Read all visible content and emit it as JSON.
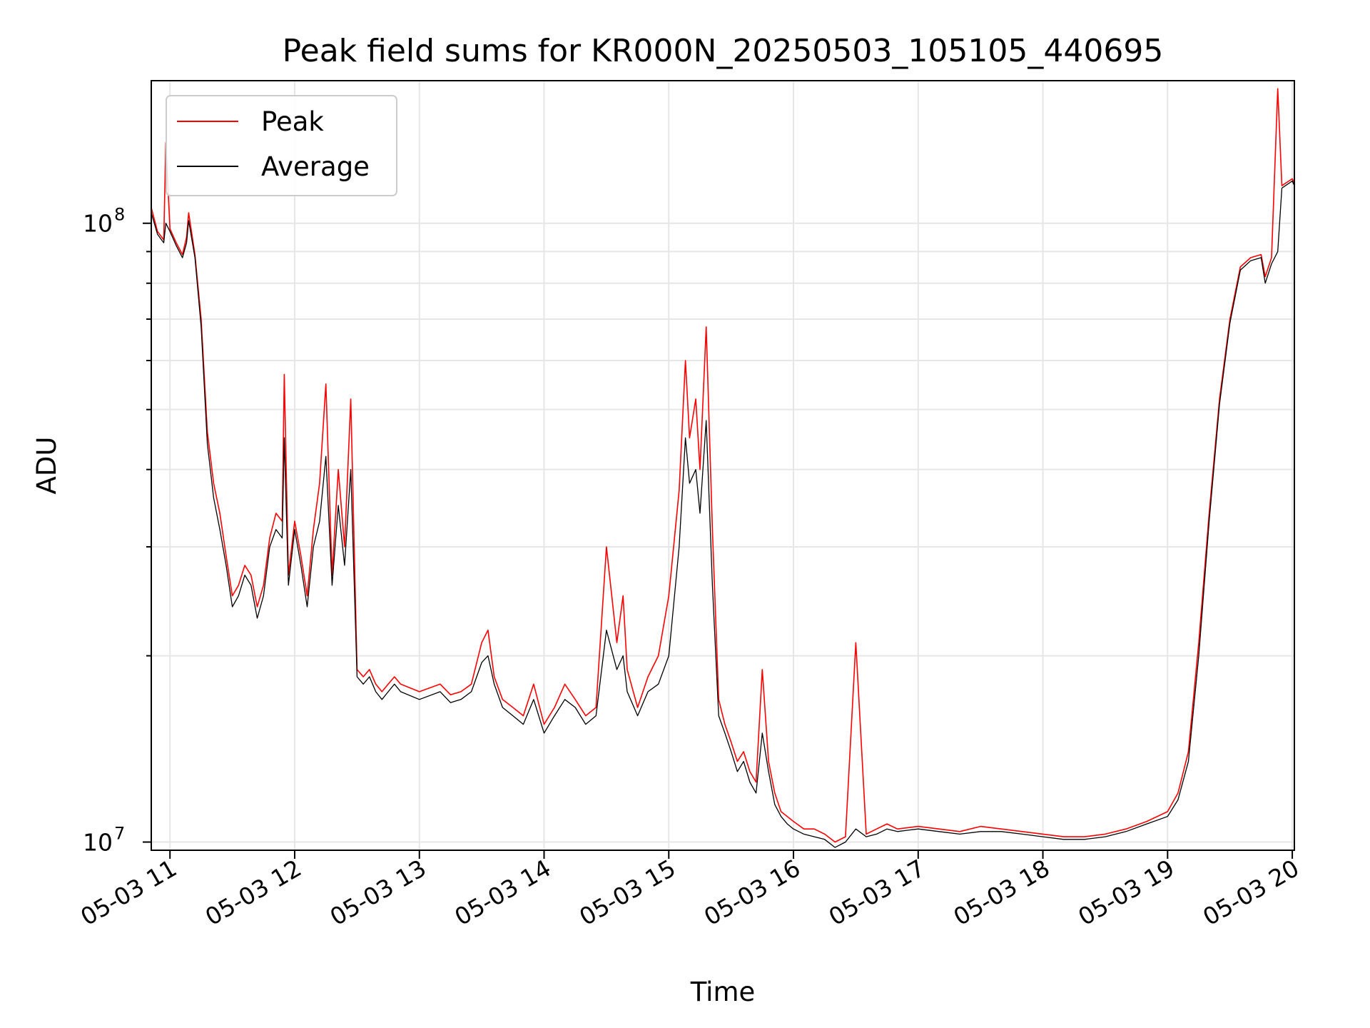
{
  "chart_data": {
    "type": "line",
    "title": "Peak field sums for KR000N_20250503_105105_440695",
    "xlabel": "Time",
    "ylabel": "ADU",
    "yscale": "log",
    "ylim": [
      9700000,
      170000000
    ],
    "xlim": [
      "2025-05-03 10:51",
      "2025-05-03 20:01"
    ],
    "grid": true,
    "legend_position": "upper-left",
    "x_ticks": [
      "05-03 11",
      "05-03 12",
      "05-03 13",
      "05-03 14",
      "05-03 15",
      "05-03 16",
      "05-03 17",
      "05-03 18",
      "05-03 19",
      "05-03 20"
    ],
    "y_ticks": [
      {
        "base": "10",
        "exp": "7",
        "value": 10000000
      },
      {
        "base": "10",
        "exp": "8",
        "value": 100000000
      }
    ],
    "colors": {
      "peak": "#ff0000",
      "average": "#000000",
      "grid": "#e6e6e6"
    },
    "series": [
      {
        "name": "Peak",
        "color": "#ff0000",
        "x": [
          "10:51",
          "10:54",
          "10:57",
          "10:58",
          "11:00",
          "11:03",
          "11:06",
          "11:08",
          "11:09",
          "11:12",
          "11:15",
          "11:18",
          "11:21",
          "11:24",
          "11:27",
          "11:30",
          "11:33",
          "11:36",
          "11:39",
          "11:42",
          "11:45",
          "11:48",
          "11:51",
          "11:54",
          "11:55",
          "11:57",
          "12:00",
          "12:03",
          "12:06",
          "12:09",
          "12:12",
          "12:15",
          "12:18",
          "12:21",
          "12:24",
          "12:27",
          "12:30",
          "12:33",
          "12:36",
          "12:39",
          "12:42",
          "12:45",
          "12:48",
          "12:51",
          "13:00",
          "13:10",
          "13:15",
          "13:20",
          "13:25",
          "13:30",
          "13:33",
          "13:36",
          "13:40",
          "13:45",
          "13:50",
          "13:55",
          "14:00",
          "14:05",
          "14:10",
          "14:15",
          "14:20",
          "14:25",
          "14:30",
          "14:35",
          "14:38",
          "14:40",
          "14:45",
          "14:50",
          "14:55",
          "15:00",
          "15:05",
          "15:08",
          "15:10",
          "15:13",
          "15:15",
          "15:18",
          "15:21",
          "15:24",
          "15:27",
          "15:30",
          "15:33",
          "15:36",
          "15:39",
          "15:42",
          "15:45",
          "15:48",
          "15:51",
          "15:54",
          "15:57",
          "16:00",
          "16:05",
          "16:10",
          "16:15",
          "16:20",
          "16:25",
          "16:30",
          "16:35",
          "16:40",
          "16:45",
          "16:50",
          "17:00",
          "17:10",
          "17:20",
          "17:30",
          "17:40",
          "17:50",
          "18:00",
          "18:10",
          "18:20",
          "18:30",
          "18:40",
          "18:50",
          "19:00",
          "19:05",
          "19:10",
          "19:15",
          "19:20",
          "19:25",
          "19:30",
          "19:35",
          "19:40",
          "19:45",
          "19:47",
          "19:50",
          "19:53",
          "19:55",
          "20:00",
          "20:01"
        ],
        "y": [
          106000000,
          97000000,
          94000000,
          135000000,
          98000000,
          93000000,
          89000000,
          95000000,
          104000000,
          89000000,
          70000000,
          46000000,
          38000000,
          34000000,
          29000000,
          25000000,
          26000000,
          28000000,
          27000000,
          24000000,
          26000000,
          31000000,
          34000000,
          33000000,
          57000000,
          27000000,
          33000000,
          29000000,
          25000000,
          32000000,
          38000000,
          55000000,
          27000000,
          40000000,
          30000000,
          52000000,
          19000000,
          18500000,
          19000000,
          18000000,
          17500000,
          18000000,
          18500000,
          18000000,
          17500000,
          18000000,
          17300000,
          17500000,
          18000000,
          21000000,
          22000000,
          18500000,
          17000000,
          16500000,
          16000000,
          18000000,
          15500000,
          16500000,
          18000000,
          17000000,
          16000000,
          16500000,
          30000000,
          21000000,
          25000000,
          19000000,
          16500000,
          18500000,
          20000000,
          25000000,
          37000000,
          60000000,
          45000000,
          52000000,
          40000000,
          68000000,
          32000000,
          17000000,
          15500000,
          14500000,
          13500000,
          14000000,
          13000000,
          12500000,
          19000000,
          13500000,
          12000000,
          11200000,
          11000000,
          10800000,
          10500000,
          10500000,
          10300000,
          10000000,
          10200000,
          21000000,
          10300000,
          10500000,
          10700000,
          10500000,
          10600000,
          10500000,
          10400000,
          10600000,
          10500000,
          10400000,
          10300000,
          10200000,
          10200000,
          10300000,
          10500000,
          10800000,
          11200000,
          12000000,
          14000000,
          21000000,
          34000000,
          52000000,
          70000000,
          85000000,
          88000000,
          89000000,
          82000000,
          88000000,
          165000000,
          115000000,
          118000000,
          116000000
        ]
      },
      {
        "name": "Average",
        "color": "#000000",
        "x": [
          "10:51",
          "10:54",
          "10:57",
          "10:58",
          "11:00",
          "11:03",
          "11:06",
          "11:08",
          "11:09",
          "11:12",
          "11:15",
          "11:18",
          "11:21",
          "11:24",
          "11:27",
          "11:30",
          "11:33",
          "11:36",
          "11:39",
          "11:42",
          "11:45",
          "11:48",
          "11:51",
          "11:54",
          "11:55",
          "11:57",
          "12:00",
          "12:03",
          "12:06",
          "12:09",
          "12:12",
          "12:15",
          "12:18",
          "12:21",
          "12:24",
          "12:27",
          "12:30",
          "12:33",
          "12:36",
          "12:39",
          "12:42",
          "12:45",
          "12:48",
          "12:51",
          "13:00",
          "13:10",
          "13:15",
          "13:20",
          "13:25",
          "13:30",
          "13:33",
          "13:36",
          "13:40",
          "13:45",
          "13:50",
          "13:55",
          "14:00",
          "14:05",
          "14:10",
          "14:15",
          "14:20",
          "14:25",
          "14:30",
          "14:35",
          "14:38",
          "14:40",
          "14:45",
          "14:50",
          "14:55",
          "15:00",
          "15:05",
          "15:08",
          "15:10",
          "15:13",
          "15:15",
          "15:18",
          "15:21",
          "15:24",
          "15:27",
          "15:30",
          "15:33",
          "15:36",
          "15:39",
          "15:42",
          "15:45",
          "15:48",
          "15:51",
          "15:54",
          "15:57",
          "16:00",
          "16:05",
          "16:10",
          "16:15",
          "16:20",
          "16:25",
          "16:30",
          "16:35",
          "16:40",
          "16:45",
          "16:50",
          "17:00",
          "17:10",
          "17:20",
          "17:30",
          "17:40",
          "17:50",
          "18:00",
          "18:10",
          "18:20",
          "18:30",
          "18:40",
          "18:50",
          "19:00",
          "19:05",
          "19:10",
          "19:15",
          "19:20",
          "19:25",
          "19:30",
          "19:35",
          "19:40",
          "19:45",
          "19:47",
          "19:50",
          "19:53",
          "19:55",
          "20:00",
          "20:01"
        ],
        "y": [
          104000000,
          96000000,
          93000000,
          100000000,
          97000000,
          92000000,
          88000000,
          93000000,
          101000000,
          88000000,
          68000000,
          44000000,
          36000000,
          32000000,
          28000000,
          24000000,
          25000000,
          27000000,
          26000000,
          23000000,
          25000000,
          30000000,
          32000000,
          31000000,
          45000000,
          26000000,
          32000000,
          28000000,
          24000000,
          30000000,
          33000000,
          42000000,
          26000000,
          35000000,
          28000000,
          40000000,
          18500000,
          18000000,
          18500000,
          17500000,
          17000000,
          17500000,
          18000000,
          17500000,
          17000000,
          17500000,
          16800000,
          17000000,
          17500000,
          19500000,
          20000000,
          18000000,
          16500000,
          16000000,
          15500000,
          17000000,
          15000000,
          16000000,
          17000000,
          16500000,
          15500000,
          16000000,
          22000000,
          19000000,
          20000000,
          17500000,
          16000000,
          17500000,
          18000000,
          20000000,
          30000000,
          45000000,
          38000000,
          40000000,
          34000000,
          48000000,
          26000000,
          16000000,
          15000000,
          14000000,
          13000000,
          13500000,
          12500000,
          12000000,
          15000000,
          13000000,
          11500000,
          11000000,
          10700000,
          10500000,
          10300000,
          10200000,
          10100000,
          9800000,
          10000000,
          10500000,
          10200000,
          10300000,
          10500000,
          10400000,
          10500000,
          10400000,
          10300000,
          10400000,
          10400000,
          10300000,
          10200000,
          10100000,
          10100000,
          10200000,
          10400000,
          10700000,
          11000000,
          11700000,
          13500000,
          20000000,
          33000000,
          51000000,
          69000000,
          84000000,
          87000000,
          88000000,
          80000000,
          86000000,
          90000000,
          114000000,
          117000000,
          115000000
        ]
      }
    ]
  }
}
